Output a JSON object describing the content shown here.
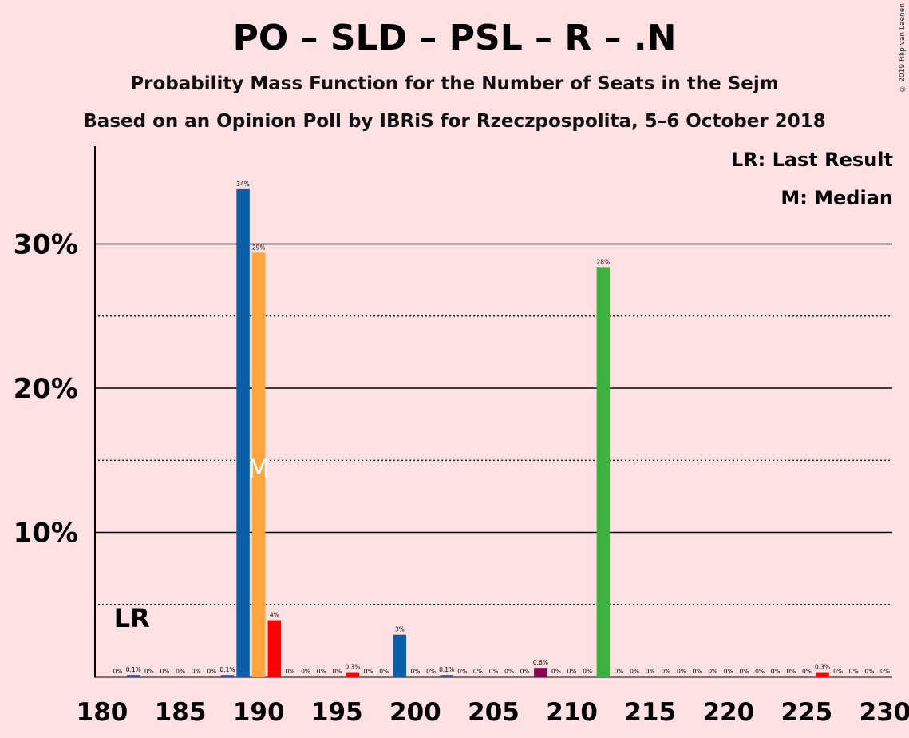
{
  "title": "PO – SLD – PSL – R – .N",
  "subtitle1": "Probability Mass Function for the Number of Seats in the Sejm",
  "subtitle2": "Based on an Opinion Poll by IBRiS for Rzeczpospolita, 5–6 October 2018",
  "copyright": "© 2019 Filip van Laenen",
  "legend": {
    "last_result": "LR: Last Result",
    "median": "M: Median"
  },
  "markers": {
    "lr_label": "LR",
    "lr_seat": 182,
    "median_label": "M",
    "median_seat": 190
  },
  "colors": {
    "background": "#FFE1E4",
    "po": "#0B5EA8",
    "median_bar": "#FFA53E",
    "psl": "#FF0000",
    "r": "#8A0050",
    "n": "#3CB33E"
  },
  "chart_data": {
    "type": "bar",
    "xlim": [
      180,
      230
    ],
    "ylim": [
      0,
      37
    ],
    "ytick_labels": [
      "10%",
      "20%",
      "30%"
    ],
    "ytick_values": [
      10,
      20,
      30
    ],
    "minor_gridlines": [
      5,
      15,
      25
    ],
    "xtick_labels": [
      "180",
      "185",
      "190",
      "195",
      "200",
      "205",
      "210",
      "215",
      "220",
      "225",
      "230"
    ],
    "xtick_values": [
      180,
      185,
      190,
      195,
      200,
      205,
      210,
      215,
      220,
      225,
      230
    ],
    "x": [
      181,
      182,
      183,
      184,
      185,
      186,
      187,
      188,
      189,
      190,
      191,
      192,
      193,
      194,
      195,
      196,
      197,
      198,
      199,
      200,
      201,
      202,
      203,
      204,
      205,
      206,
      207,
      208,
      209,
      210,
      211,
      212,
      213,
      214,
      215,
      216,
      217,
      218,
      219,
      220,
      221,
      222,
      223,
      224,
      225,
      226,
      227,
      228,
      229,
      230
    ],
    "values": [
      0,
      0.1,
      0,
      0,
      0,
      0,
      0,
      0.1,
      33.8,
      29.4,
      3.9,
      0,
      0,
      0,
      0,
      0.3,
      0,
      0,
      2.9,
      0,
      0,
      0.1,
      0,
      0,
      0,
      0,
      0,
      0.6,
      0,
      0,
      0,
      28.4,
      0,
      0,
      0,
      0,
      0,
      0,
      0,
      0,
      0,
      0,
      0,
      0,
      0,
      0.3,
      0,
      0,
      0,
      0
    ],
    "data_labels": [
      "0%",
      "0.1%",
      "0%",
      "0%",
      "0%",
      "0%",
      "0%",
      "0.1%",
      "34%",
      "29%",
      "4%",
      "0%",
      "0%",
      "0%",
      "0%",
      "0.3%",
      "0%",
      "0%",
      "3%",
      "0%",
      "0%",
      "0.1%",
      "0%",
      "0%",
      "0%",
      "0%",
      "0%",
      "0.6%",
      "0%",
      "0%",
      "0%",
      "28%",
      "0%",
      "0%",
      "0%",
      "0%",
      "0%",
      "0%",
      "0%",
      "0%",
      "0%",
      "0%",
      "0%",
      "0%",
      "0%",
      "0.3%",
      "0%",
      "0%",
      "0%",
      "0%"
    ],
    "bar_colors": [
      "po",
      "po",
      "po",
      "po",
      "po",
      "po",
      "po",
      "po",
      "po",
      "median_bar",
      "psl",
      "psl",
      "psl",
      "psl",
      "psl",
      "psl",
      "psl",
      "psl",
      "po",
      "po",
      "po",
      "po",
      "po",
      "po",
      "po",
      "po",
      "po",
      "r",
      "r",
      "r",
      "r",
      "n",
      "n",
      "n",
      "n",
      "n",
      "n",
      "n",
      "n",
      "n",
      "n",
      "n",
      "n",
      "n",
      "n",
      "psl",
      "psl",
      "psl",
      "psl",
      "psl"
    ],
    "grid": true
  }
}
